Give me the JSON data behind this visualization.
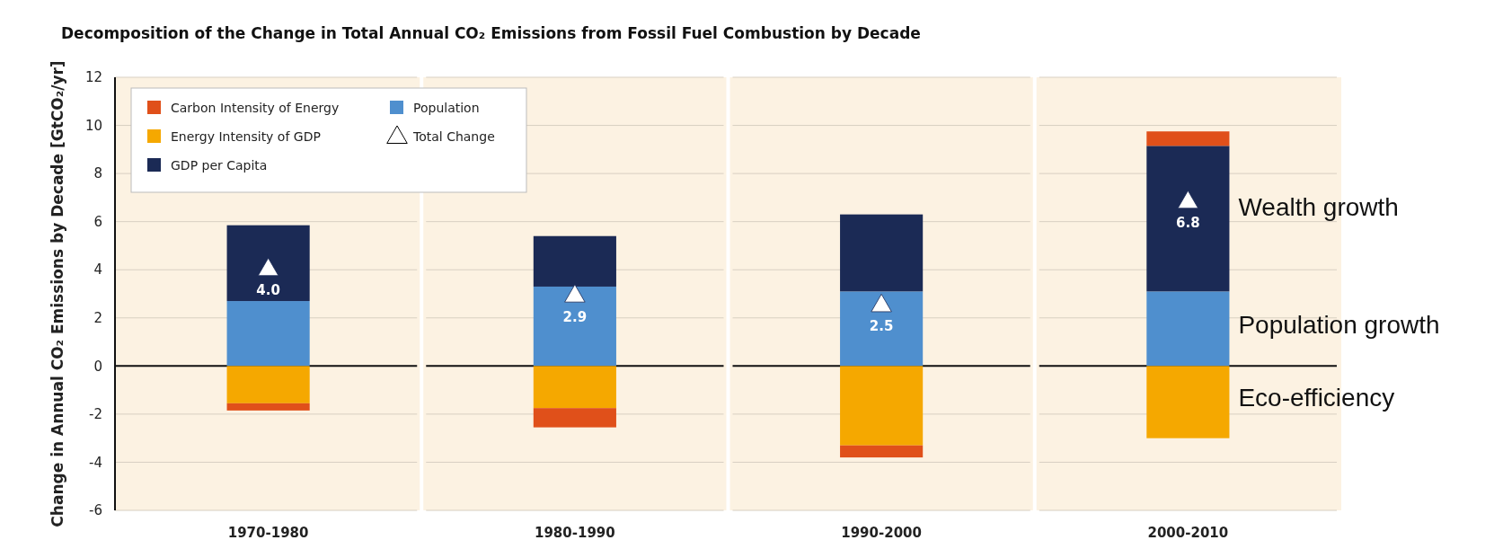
{
  "chart_data": {
    "type": "bar",
    "stacked": true,
    "title": "Decomposition of the Change in Total Annual CO₂ Emissions from Fossil Fuel Combustion by Decade",
    "ylabel": "Change in Annual CO₂ Emissions by Decade [GtCO₂/yr]",
    "categories": [
      "1970-1980",
      "1980-1990",
      "1990-2000",
      "2000-2010"
    ],
    "series": [
      {
        "name": "Population",
        "color": "#4f8fce",
        "values": [
          2.7,
          3.3,
          3.1,
          3.1
        ]
      },
      {
        "name": "Energy Intensity of GDP",
        "color": "#f5a800",
        "values": [
          -1.55,
          -1.75,
          -3.3,
          -3.0
        ]
      },
      {
        "name": "GDP per Capita",
        "color": "#1b2a55",
        "values": [
          3.15,
          2.1,
          3.2,
          6.05
        ]
      },
      {
        "name": "Carbon Intensity of Energy",
        "color": "#e0501a",
        "values": [
          -0.3,
          -0.8,
          -0.5,
          0.6
        ]
      },
      {
        "name": "Total Change",
        "type": "scatter",
        "marker": "triangle",
        "color": "#ffffff",
        "values": [
          4.0,
          2.9,
          2.5,
          6.8
        ],
        "value_labels": [
          "4.0",
          "2.9",
          "2.5",
          "6.8"
        ]
      }
    ],
    "ylim": [
      -6,
      12
    ],
    "yticks": [
      -6,
      -4,
      -2,
      0,
      2,
      4,
      6,
      8,
      10,
      12
    ],
    "grid": "y",
    "legend": "top left",
    "annotations": [
      "Wealth growth",
      "Population growth",
      "Eco-efficiency"
    ]
  }
}
